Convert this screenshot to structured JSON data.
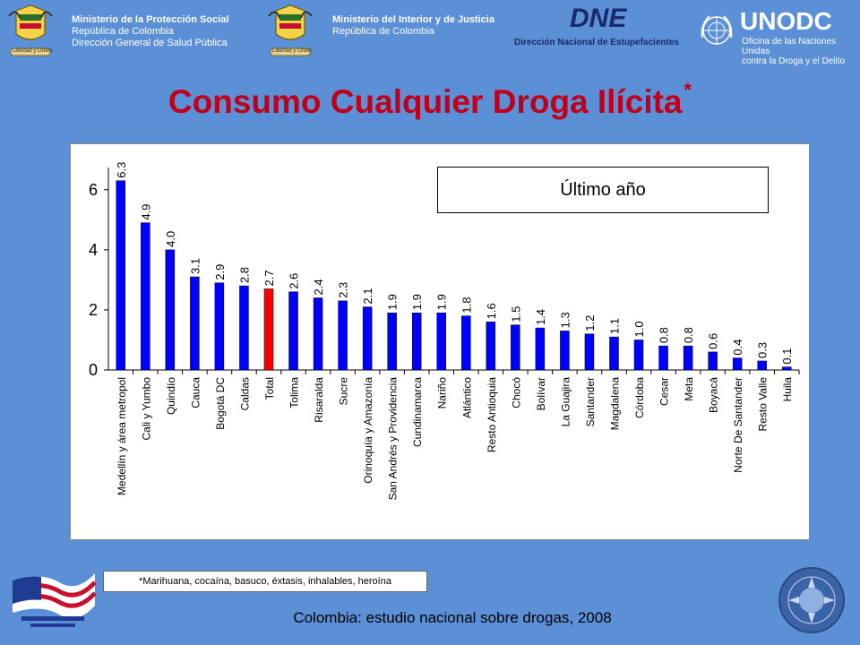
{
  "header": {
    "left_block": {
      "line1": "Ministerio de la Protección Social",
      "line2": "República de Colombia",
      "line3": "Dirección General de Salud Pública"
    },
    "center_block": {
      "line1": "Ministerio del Interior y de Justicia",
      "line2": "República de Colombia"
    },
    "seal_caption": "Libertad y Orden",
    "dne": {
      "logo": "DNE",
      "subtitle": "Dirección Nacional de Estupefacientes"
    },
    "unodc": {
      "logo": "UNODC",
      "subtitle_line1": "Oficina de las Naciones Unidas",
      "subtitle_line2": "contra la Droga y el Delito"
    }
  },
  "title": "Consumo Cualquier Droga Ilícita",
  "title_mark": "*",
  "footnote": "*Marihuana, cocaína, basuco, éxtasis, inhalables, heroína",
  "source": "Colombia: estudio nacional sobre drogas, 2008",
  "colors": {
    "bar": "#0000ff",
    "highlight": "#ff0000",
    "background": "#5b8fd6",
    "title": "#c0001a"
  },
  "chart_data": {
    "type": "bar",
    "title": "",
    "legend_label": "Último año",
    "legend_placement": "top-right",
    "xlabel": "",
    "ylabel": "",
    "ylim": [
      0,
      6.5
    ],
    "yticks": [
      0,
      2,
      4,
      6
    ],
    "grid": false,
    "highlight_category": "Total",
    "categories": [
      "Medellín y área metropol",
      "Cali y Yumbo",
      "Quindío",
      "Cauca",
      "Bogotá DC",
      "Caldas",
      "Total",
      "Tolima",
      "Risaralda",
      "Sucre",
      "Orinoquía y Amazonía",
      "San Andrés y Providencia",
      "Cundinamarca",
      "Nariño",
      "Atlántico",
      "Resto Antioquia",
      "Chocó",
      "Bolívar",
      "La Guajira",
      "Santander",
      "Magdalena",
      "Córdoba",
      "Cesar",
      "Meta",
      "Boyacá",
      "Norte De Santander",
      "Resto Valle",
      "Huila"
    ],
    "values": [
      6.3,
      4.9,
      4.0,
      3.1,
      2.9,
      2.8,
      2.7,
      2.6,
      2.4,
      2.3,
      2.1,
      1.9,
      1.9,
      1.9,
      1.8,
      1.6,
      1.5,
      1.4,
      1.3,
      1.2,
      1.1,
      1.0,
      0.8,
      0.8,
      0.6,
      0.4,
      0.3,
      0.1
    ],
    "value_labels": [
      "6.3",
      "4.9",
      "4.0",
      "3.1",
      "2.9",
      "2.8",
      "2.7",
      "2.6",
      "2.4",
      "2.3",
      "2.1",
      "1.9",
      "1.9",
      "1.9",
      "1.8",
      "1.6",
      "1.5",
      "1.4",
      "1.3",
      "1.2",
      "1.1",
      "1.0",
      "0.8",
      "0.8",
      "0.6",
      "0.4",
      "0.3",
      "0.1"
    ]
  }
}
